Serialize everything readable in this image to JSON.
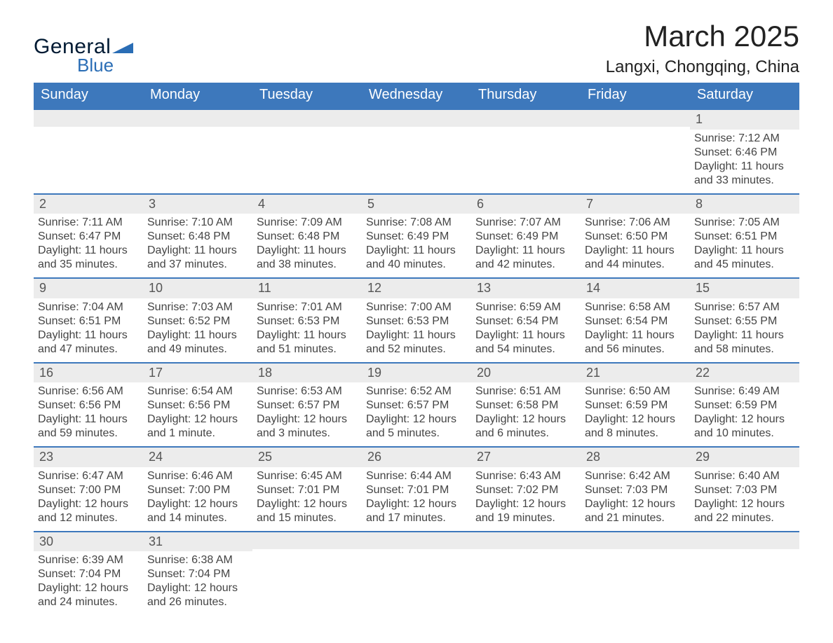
{
  "brand": {
    "word1": "General",
    "word2": "Blue",
    "accent_color": "#2a6db5",
    "shape_color": "#2a6db5"
  },
  "header": {
    "month": "March 2025",
    "location": "Langxi, Chongqing, China"
  },
  "style": {
    "header_bg": "#3d78bc",
    "header_text": "#ffffff",
    "row_divider": "#3d78bc",
    "daystrip_bg": "#ececec",
    "body_text": "#444444",
    "page_bg": "#ffffff",
    "month_fontsize": 42,
    "location_fontsize": 24,
    "dayhdr_fontsize": 20,
    "cell_fontsize": 16
  },
  "day_headers": [
    "Sunday",
    "Monday",
    "Tuesday",
    "Wednesday",
    "Thursday",
    "Friday",
    "Saturday"
  ],
  "weeks": [
    [
      null,
      null,
      null,
      null,
      null,
      null,
      {
        "d": "1",
        "sr": "Sunrise: 7:12 AM",
        "ss": "Sunset: 6:46 PM",
        "dl": "Daylight: 11 hours and 33 minutes."
      }
    ],
    [
      {
        "d": "2",
        "sr": "Sunrise: 7:11 AM",
        "ss": "Sunset: 6:47 PM",
        "dl": "Daylight: 11 hours and 35 minutes."
      },
      {
        "d": "3",
        "sr": "Sunrise: 7:10 AM",
        "ss": "Sunset: 6:48 PM",
        "dl": "Daylight: 11 hours and 37 minutes."
      },
      {
        "d": "4",
        "sr": "Sunrise: 7:09 AM",
        "ss": "Sunset: 6:48 PM",
        "dl": "Daylight: 11 hours and 38 minutes."
      },
      {
        "d": "5",
        "sr": "Sunrise: 7:08 AM",
        "ss": "Sunset: 6:49 PM",
        "dl": "Daylight: 11 hours and 40 minutes."
      },
      {
        "d": "6",
        "sr": "Sunrise: 7:07 AM",
        "ss": "Sunset: 6:49 PM",
        "dl": "Daylight: 11 hours and 42 minutes."
      },
      {
        "d": "7",
        "sr": "Sunrise: 7:06 AM",
        "ss": "Sunset: 6:50 PM",
        "dl": "Daylight: 11 hours and 44 minutes."
      },
      {
        "d": "8",
        "sr": "Sunrise: 7:05 AM",
        "ss": "Sunset: 6:51 PM",
        "dl": "Daylight: 11 hours and 45 minutes."
      }
    ],
    [
      {
        "d": "9",
        "sr": "Sunrise: 7:04 AM",
        "ss": "Sunset: 6:51 PM",
        "dl": "Daylight: 11 hours and 47 minutes."
      },
      {
        "d": "10",
        "sr": "Sunrise: 7:03 AM",
        "ss": "Sunset: 6:52 PM",
        "dl": "Daylight: 11 hours and 49 minutes."
      },
      {
        "d": "11",
        "sr": "Sunrise: 7:01 AM",
        "ss": "Sunset: 6:53 PM",
        "dl": "Daylight: 11 hours and 51 minutes."
      },
      {
        "d": "12",
        "sr": "Sunrise: 7:00 AM",
        "ss": "Sunset: 6:53 PM",
        "dl": "Daylight: 11 hours and 52 minutes."
      },
      {
        "d": "13",
        "sr": "Sunrise: 6:59 AM",
        "ss": "Sunset: 6:54 PM",
        "dl": "Daylight: 11 hours and 54 minutes."
      },
      {
        "d": "14",
        "sr": "Sunrise: 6:58 AM",
        "ss": "Sunset: 6:54 PM",
        "dl": "Daylight: 11 hours and 56 minutes."
      },
      {
        "d": "15",
        "sr": "Sunrise: 6:57 AM",
        "ss": "Sunset: 6:55 PM",
        "dl": "Daylight: 11 hours and 58 minutes."
      }
    ],
    [
      {
        "d": "16",
        "sr": "Sunrise: 6:56 AM",
        "ss": "Sunset: 6:56 PM",
        "dl": "Daylight: 11 hours and 59 minutes."
      },
      {
        "d": "17",
        "sr": "Sunrise: 6:54 AM",
        "ss": "Sunset: 6:56 PM",
        "dl": "Daylight: 12 hours and 1 minute."
      },
      {
        "d": "18",
        "sr": "Sunrise: 6:53 AM",
        "ss": "Sunset: 6:57 PM",
        "dl": "Daylight: 12 hours and 3 minutes."
      },
      {
        "d": "19",
        "sr": "Sunrise: 6:52 AM",
        "ss": "Sunset: 6:57 PM",
        "dl": "Daylight: 12 hours and 5 minutes."
      },
      {
        "d": "20",
        "sr": "Sunrise: 6:51 AM",
        "ss": "Sunset: 6:58 PM",
        "dl": "Daylight: 12 hours and 6 minutes."
      },
      {
        "d": "21",
        "sr": "Sunrise: 6:50 AM",
        "ss": "Sunset: 6:59 PM",
        "dl": "Daylight: 12 hours and 8 minutes."
      },
      {
        "d": "22",
        "sr": "Sunrise: 6:49 AM",
        "ss": "Sunset: 6:59 PM",
        "dl": "Daylight: 12 hours and 10 minutes."
      }
    ],
    [
      {
        "d": "23",
        "sr": "Sunrise: 6:47 AM",
        "ss": "Sunset: 7:00 PM",
        "dl": "Daylight: 12 hours and 12 minutes."
      },
      {
        "d": "24",
        "sr": "Sunrise: 6:46 AM",
        "ss": "Sunset: 7:00 PM",
        "dl": "Daylight: 12 hours and 14 minutes."
      },
      {
        "d": "25",
        "sr": "Sunrise: 6:45 AM",
        "ss": "Sunset: 7:01 PM",
        "dl": "Daylight: 12 hours and 15 minutes."
      },
      {
        "d": "26",
        "sr": "Sunrise: 6:44 AM",
        "ss": "Sunset: 7:01 PM",
        "dl": "Daylight: 12 hours and 17 minutes."
      },
      {
        "d": "27",
        "sr": "Sunrise: 6:43 AM",
        "ss": "Sunset: 7:02 PM",
        "dl": "Daylight: 12 hours and 19 minutes."
      },
      {
        "d": "28",
        "sr": "Sunrise: 6:42 AM",
        "ss": "Sunset: 7:03 PM",
        "dl": "Daylight: 12 hours and 21 minutes."
      },
      {
        "d": "29",
        "sr": "Sunrise: 6:40 AM",
        "ss": "Sunset: 7:03 PM",
        "dl": "Daylight: 12 hours and 22 minutes."
      }
    ],
    [
      {
        "d": "30",
        "sr": "Sunrise: 6:39 AM",
        "ss": "Sunset: 7:04 PM",
        "dl": "Daylight: 12 hours and 24 minutes."
      },
      {
        "d": "31",
        "sr": "Sunrise: 6:38 AM",
        "ss": "Sunset: 7:04 PM",
        "dl": "Daylight: 12 hours and 26 minutes."
      },
      null,
      null,
      null,
      null,
      null
    ]
  ]
}
